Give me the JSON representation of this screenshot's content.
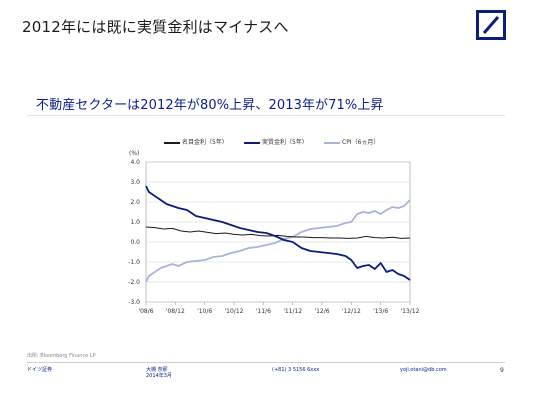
{
  "slide": {
    "title": "2012年には既に実質金利はマイナスへ",
    "subtitle": "不動産セクターは2012年が80%上昇、2013年が71%上昇",
    "page_number": "9",
    "brand_color": "#0a1d7a"
  },
  "footer": {
    "source": "出所: Bloomberg Finance LP",
    "left": "ドイツ証券",
    "center_line1": "大槻 奈那",
    "center_line2": "2014年3月",
    "phone": "(+81) 3 5156 6xxx",
    "email": "yoji.otani@db.com"
  },
  "chart_data": {
    "type": "line",
    "unit_label": "(%)",
    "ylim": [
      -3.0,
      4.0
    ],
    "yticks": [
      -3.0,
      -2.0,
      -1.0,
      0.0,
      1.0,
      2.0,
      3.0,
      4.0
    ],
    "ytick_labels": [
      "-3.0",
      "-2.0",
      "-1.0",
      "0.0",
      "1.0",
      "2.0",
      "3.0",
      "4.0"
    ],
    "xlim": [
      0,
      90
    ],
    "xticks": [
      0,
      10,
      20,
      30,
      40,
      50,
      60,
      70,
      80,
      90
    ],
    "xtick_labels": [
      "'08/6",
      "'08/12",
      "'10/6",
      "'10/12",
      "'11/6",
      "'11/12",
      "'12/6",
      "'12/12",
      "'13/6",
      "'13/12"
    ],
    "grid": "horizontal",
    "legend": "top",
    "series": [
      {
        "name": "名目金利（5年）",
        "color": "#1a1a1a",
        "x": [
          0,
          3,
          6,
          9,
          12,
          15,
          18,
          21,
          24,
          27,
          30,
          33,
          36,
          39,
          42,
          45,
          48,
          51,
          54,
          57,
          60,
          63,
          66,
          69,
          72,
          75,
          78,
          81,
          84,
          87,
          90
        ],
        "values": [
          0.75,
          0.72,
          0.65,
          0.68,
          0.55,
          0.5,
          0.55,
          0.48,
          0.42,
          0.45,
          0.38,
          0.35,
          0.38,
          0.32,
          0.3,
          0.33,
          0.28,
          0.25,
          0.25,
          0.22,
          0.22,
          0.2,
          0.2,
          0.18,
          0.2,
          0.28,
          0.22,
          0.2,
          0.24,
          0.18,
          0.2
        ]
      },
      {
        "name": "実質金利（5年）",
        "color": "#0a1d7a",
        "x": [
          0,
          1,
          3,
          5,
          7,
          9,
          11,
          14,
          17,
          20,
          23,
          26,
          29,
          32,
          35,
          38,
          41,
          44,
          47,
          50,
          53,
          56,
          59,
          62,
          65,
          68,
          70,
          72,
          74,
          76,
          78,
          80,
          82,
          84,
          86,
          88,
          90
        ],
        "values": [
          2.8,
          2.5,
          2.3,
          2.1,
          1.9,
          1.8,
          1.7,
          1.6,
          1.3,
          1.2,
          1.1,
          1.0,
          0.85,
          0.7,
          0.6,
          0.5,
          0.45,
          0.3,
          0.1,
          0.0,
          -0.3,
          -0.45,
          -0.5,
          -0.55,
          -0.6,
          -0.7,
          -0.9,
          -1.3,
          -1.2,
          -1.15,
          -1.35,
          -1.05,
          -1.5,
          -1.4,
          -1.6,
          -1.7,
          -1.9
        ]
      },
      {
        "name": "CPI（6ヵ月）",
        "color": "#a9b3da",
        "x": [
          0,
          1,
          3,
          5,
          7,
          9,
          11,
          14,
          17,
          20,
          23,
          26,
          29,
          32,
          35,
          38,
          41,
          44,
          47,
          50,
          53,
          56,
          59,
          62,
          65,
          68,
          70,
          72,
          74,
          76,
          78,
          80,
          82,
          84,
          86,
          88,
          90
        ],
        "values": [
          -2.0,
          -1.7,
          -1.5,
          -1.3,
          -1.2,
          -1.1,
          -1.2,
          -1.0,
          -0.95,
          -0.9,
          -0.75,
          -0.7,
          -0.55,
          -0.45,
          -0.3,
          -0.25,
          -0.15,
          -0.05,
          0.15,
          0.25,
          0.5,
          0.65,
          0.7,
          0.75,
          0.8,
          0.95,
          1.0,
          1.4,
          1.5,
          1.45,
          1.55,
          1.4,
          1.6,
          1.75,
          1.7,
          1.8,
          2.1
        ]
      }
    ]
  }
}
